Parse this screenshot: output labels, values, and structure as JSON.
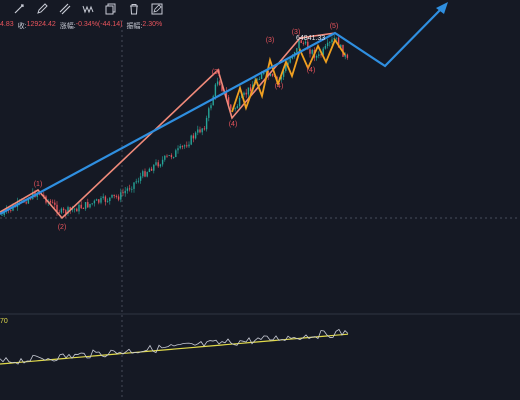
{
  "toolbar": {
    "tools": [
      {
        "name": "trendline-tool-button",
        "icon": "pen-line-icon"
      },
      {
        "name": "ray-tool-button",
        "icon": "pencil-icon"
      },
      {
        "name": "rectangle-tool-button",
        "icon": "rectangle-icon"
      },
      {
        "name": "wave-tool-button",
        "icon": "wave-icon"
      },
      {
        "name": "copy-tool-button",
        "icon": "copy-icon"
      },
      {
        "name": "delete-tool-button",
        "icon": "trash-icon"
      },
      {
        "name": "edit-tool-button",
        "icon": "edit-icon"
      }
    ]
  },
  "ohlc": {
    "open_fragment": "4.83",
    "close_label": "收:",
    "close_value": "12924.42",
    "change_label": "涨幅:",
    "change_value": "-0.34%(-44.14)",
    "amplitude_label": "振幅:",
    "amplitude_value": "2.30%"
  },
  "oscillator": {
    "label_fragment": "70"
  },
  "price_marker": {
    "text": "64841.33"
  },
  "wave_labels": [
    {
      "text": "(1)",
      "color": "#e8545c"
    },
    {
      "text": "(2)",
      "color": "#e8545c"
    },
    {
      "text": "(3)",
      "color": "#e8545c"
    },
    {
      "text": "(4)",
      "color": "#e8545c"
    },
    {
      "text": "(3)",
      "color": "#e8545c"
    },
    {
      "text": "(4)",
      "color": "#e8545c"
    },
    {
      "text": "(3)",
      "color": "#e8545c"
    },
    {
      "text": "(4)",
      "color": "#e8545c"
    },
    {
      "text": "(5)",
      "color": "#e8545c"
    }
  ],
  "colors": {
    "background": "#151924",
    "up_candle": "#26a69a",
    "down_candle": "#e8545c",
    "projection_line": "#2f8fe0",
    "wave_orange": "#f0a020",
    "wave_salmon": "#f08a7a",
    "grid": "#2a2e39",
    "crosshair": "#5a5f6e",
    "oscillator_line": "#c9ccd6",
    "oscillator_signal": "#e0d94a"
  }
}
